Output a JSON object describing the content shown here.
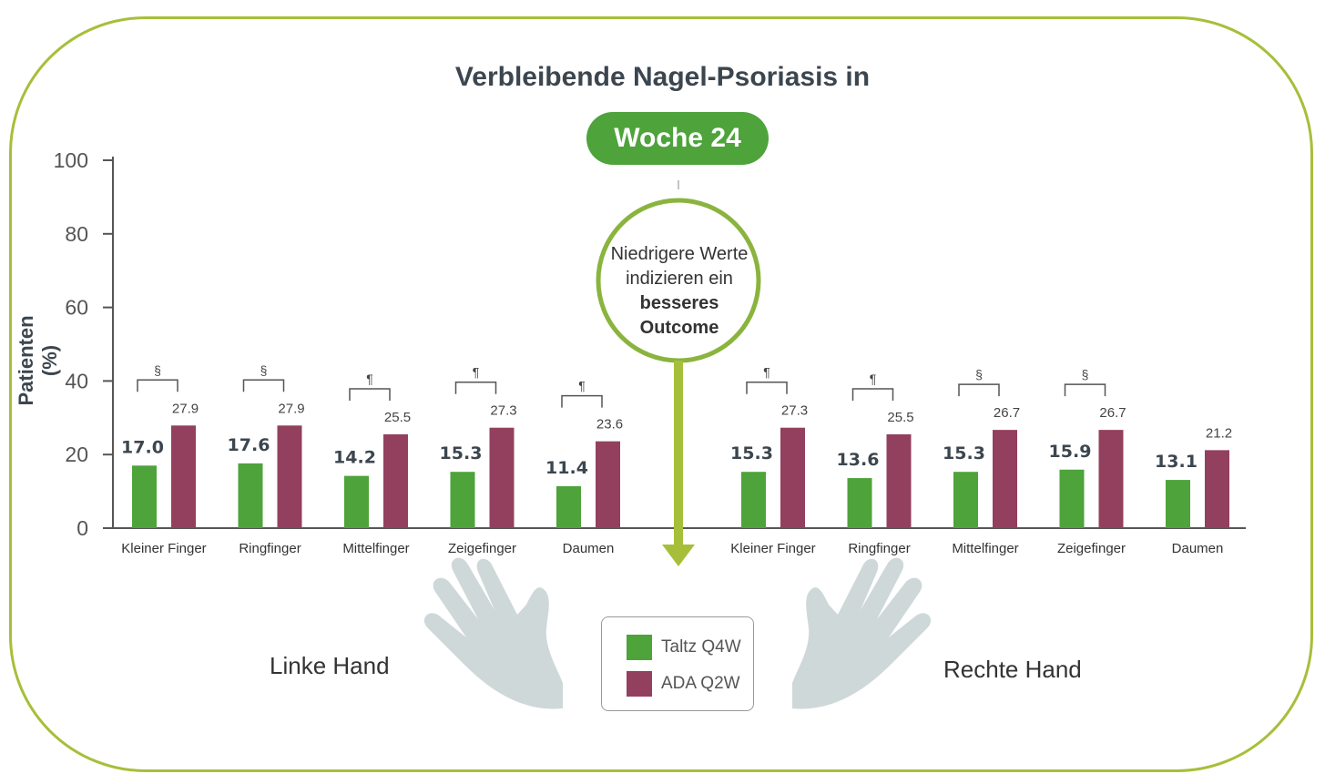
{
  "title": "Verbleibende Nagel-Psoriasis in",
  "week_label": "Woche 24",
  "note": {
    "line1": "Niedrigere Werte",
    "line2": "indizieren ein",
    "bold1": "besseres",
    "bold2": "Outcome"
  },
  "hands": {
    "left": "Linke Hand",
    "right": "Rechte Hand"
  },
  "legend": [
    {
      "label": "Taltz Q4W",
      "color": "#4ea33b"
    },
    {
      "label": "ADA Q2W",
      "color": "#93405e"
    }
  ],
  "chart_data": {
    "type": "bar",
    "ylabel": "Patienten (%)",
    "ylim": [
      0,
      100
    ],
    "yticks": [
      0,
      20,
      40,
      60,
      80,
      100
    ],
    "grid": false,
    "groups": [
      {
        "name": "Linke Hand",
        "categories": [
          "Kleiner Finger",
          "Ringfinger",
          "Mittelfinger",
          "Zeigefinger",
          "Daumen"
        ],
        "significance": [
          "§",
          "§",
          "¶",
          "¶",
          "¶"
        ],
        "series": [
          {
            "name": "Taltz Q4W",
            "color": "#4ea33b",
            "values": [
              17.0,
              17.6,
              14.2,
              15.3,
              11.4
            ]
          },
          {
            "name": "ADA Q2W",
            "color": "#93405e",
            "values": [
              27.9,
              27.9,
              25.5,
              27.3,
              23.6
            ]
          }
        ]
      },
      {
        "name": "Rechte Hand",
        "categories": [
          "Kleiner Finger",
          "Ringfinger",
          "Mittelfinger",
          "Zeigefinger",
          "Daumen"
        ],
        "significance": [
          "¶",
          "¶",
          "§",
          "§",
          ""
        ],
        "series": [
          {
            "name": "Taltz Q4W",
            "color": "#4ea33b",
            "values": [
              15.3,
              13.6,
              15.3,
              15.9,
              13.1
            ]
          },
          {
            "name": "ADA Q2W",
            "color": "#93405e",
            "values": [
              27.3,
              25.5,
              26.7,
              26.7,
              21.2
            ]
          }
        ]
      }
    ]
  }
}
